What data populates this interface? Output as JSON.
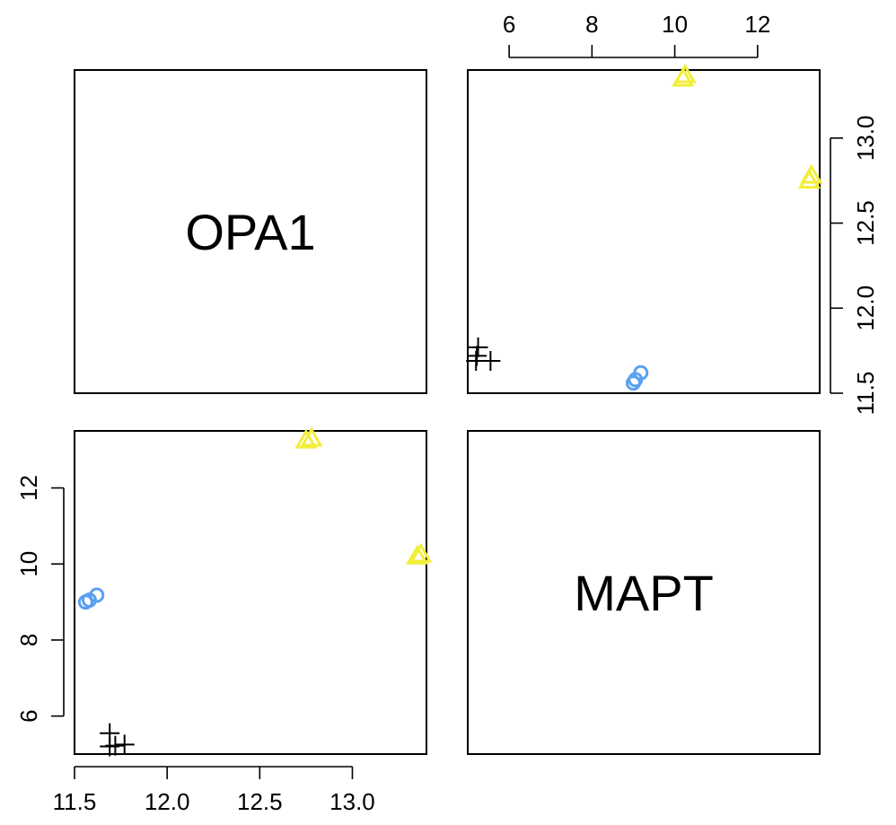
{
  "chart_data": {
    "type": "scatter",
    "variables": [
      "OPA1",
      "MAPT"
    ],
    "ranges": {
      "OPA1": [
        11.5,
        13.4
      ],
      "MAPT": [
        5,
        13.5
      ]
    },
    "ticks": {
      "OPA1": [
        "11.5",
        "12.0",
        "12.5",
        "13.0"
      ],
      "MAPT": [
        "6",
        "8",
        "10",
        "12"
      ]
    },
    "groups": [
      {
        "marker": "cross",
        "color": "#000000",
        "points": [
          {
            "OPA1": 11.69,
            "MAPT": 5.55
          },
          {
            "OPA1": 11.69,
            "MAPT": 5.2
          },
          {
            "OPA1": 11.72,
            "MAPT": 5.22
          },
          {
            "OPA1": 11.77,
            "MAPT": 5.25
          }
        ]
      },
      {
        "marker": "circle",
        "color": "#5aa0f0",
        "points": [
          {
            "OPA1": 11.56,
            "MAPT": 9.0
          },
          {
            "OPA1": 11.58,
            "MAPT": 9.05
          },
          {
            "OPA1": 11.62,
            "MAPT": 9.18
          }
        ]
      },
      {
        "marker": "triangle",
        "color": "#f2ee3a",
        "points": [
          {
            "OPA1": 12.75,
            "MAPT": 13.25
          },
          {
            "OPA1": 12.78,
            "MAPT": 13.3
          },
          {
            "OPA1": 13.35,
            "MAPT": 10.2
          },
          {
            "OPA1": 13.37,
            "MAPT": 10.25
          }
        ]
      }
    ]
  }
}
